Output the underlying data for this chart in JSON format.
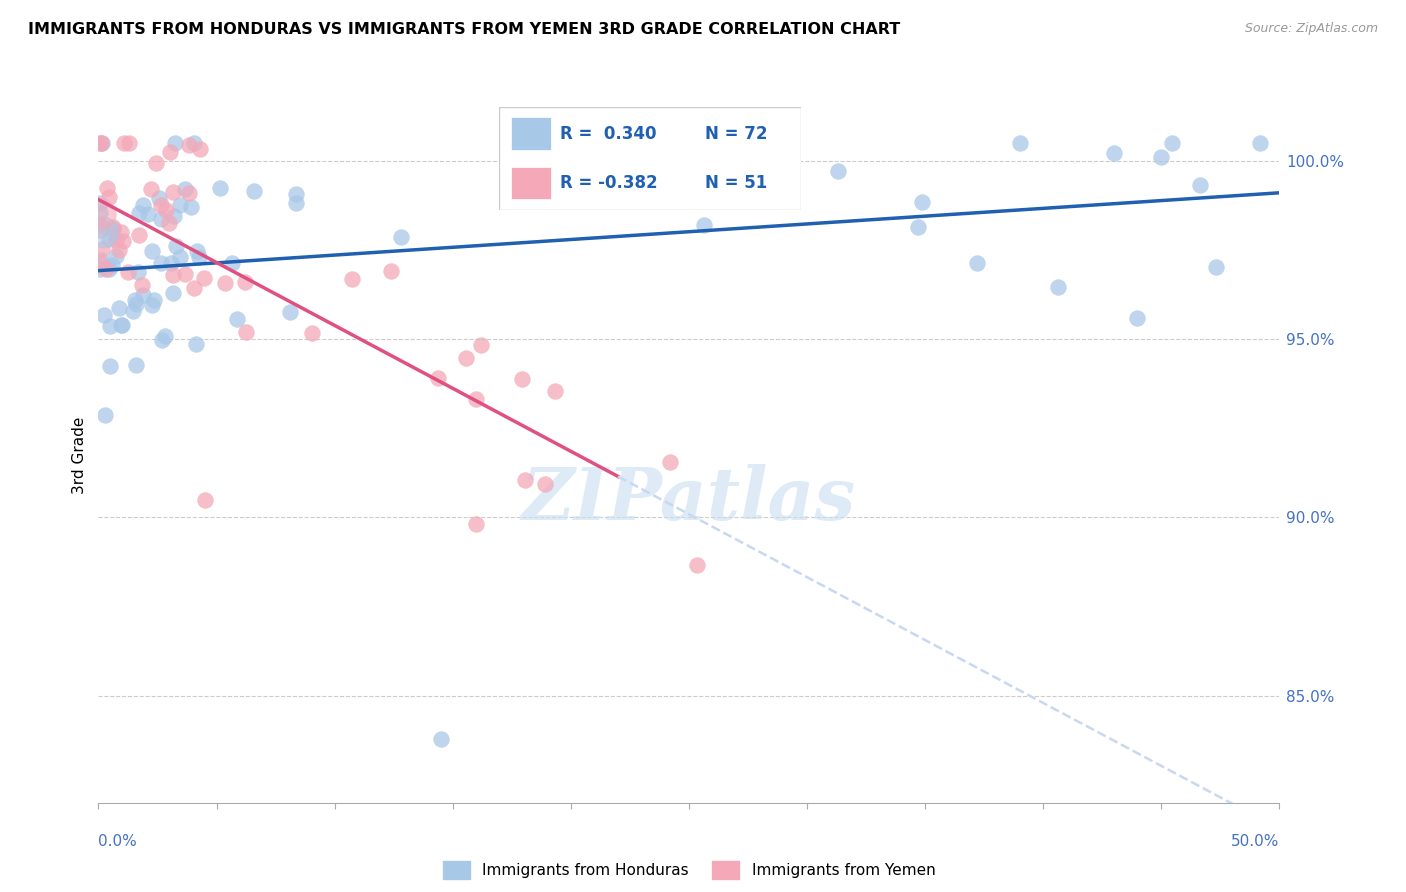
{
  "title": "IMMIGRANTS FROM HONDURAS VS IMMIGRANTS FROM YEMEN 3RD GRADE CORRELATION CHART",
  "source": "Source: ZipAtlas.com",
  "ylabel": "3rd Grade",
  "xlim": [
    0.0,
    50.0
  ],
  "ylim": [
    82.0,
    101.5
  ],
  "y_ticks": [
    85.0,
    90.0,
    95.0,
    100.0
  ],
  "y_tick_labels": [
    "85.0%",
    "90.0%",
    "95.0%",
    "100.0%"
  ],
  "blue_color": "#a8c8e8",
  "pink_color": "#f4a8b8",
  "trend_blue": "#2060b0",
  "trend_pink": "#e05080",
  "trend_pink_dash": "#c8d8f0",
  "watermark_color": "#c8dff0",
  "legend_text_color": "#2060b0",
  "ytick_color": "#4472c4",
  "xlabel_color": "#4472c4"
}
